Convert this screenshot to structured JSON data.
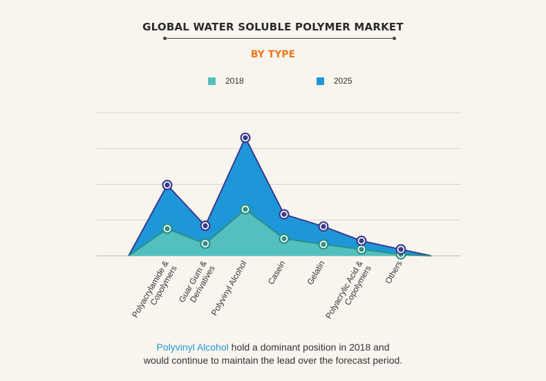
{
  "title": "GLOBAL WATER SOLUBLE POLYMER MARKET",
  "subtitle": "BY TYPE",
  "legend": [
    {
      "label": "2018",
      "color": "#53bfbf"
    },
    {
      "label": "2025",
      "color": "#1e97d8"
    }
  ],
  "footer": {
    "highlight": "Polyvinyl Alcohol",
    "line1_rest": " hold a dominant position in 2018 and",
    "line2": "would continue to maintain the lead over the forecast period."
  },
  "chart_data": {
    "type": "area",
    "categories": [
      "Polyacrylamide & Copolymers",
      "Guar Gum & Derivatives",
      "Polyvinyl Alcohol",
      "Casein",
      "Gelatin",
      "Polyacrylic Acid & Copolymers",
      "Others"
    ],
    "series": [
      {
        "name": "2018",
        "values": [
          38,
          17,
          65,
          24,
          16,
          9,
          2
        ],
        "color": "#53bfbf",
        "stroke": "#2d8f82"
      },
      {
        "name": "2025",
        "values": [
          99,
          42,
          165,
          58,
          41,
          21,
          9
        ],
        "color": "#1e97d8",
        "stroke": "#3a3a8c"
      }
    ],
    "ylim": [
      0,
      200
    ],
    "grid": true,
    "legend_position": "top"
  }
}
